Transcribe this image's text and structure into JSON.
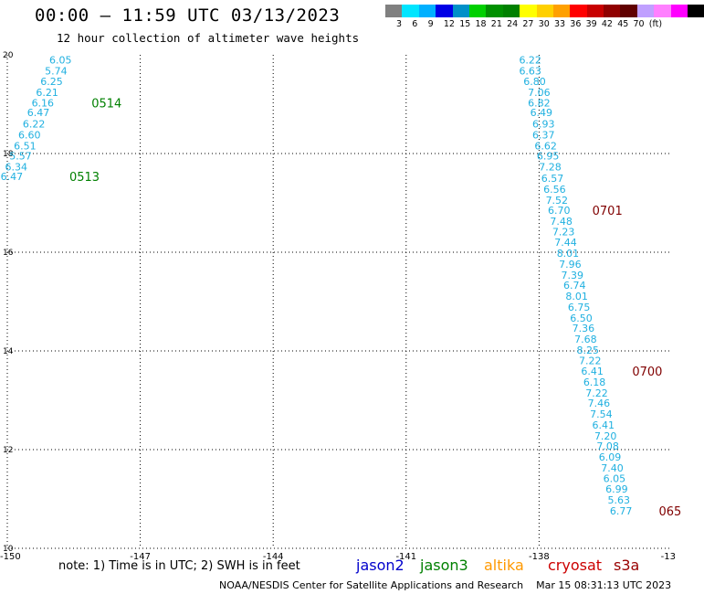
{
  "header": {
    "title": "00:00 – 11:59 UTC 03/13/2023",
    "subtitle": "12 hour collection of altimeter wave heights"
  },
  "legend": {
    "colors": [
      "#808080",
      "#00e5ff",
      "#00b0ff",
      "#0000e6",
      "#0090c8",
      "#00d000",
      "#009000",
      "#008000",
      "#ffff00",
      "#ffd000",
      "#ffa000",
      "#ff0000",
      "#c80000",
      "#900000",
      "#600000",
      "#c0a0ff",
      "#ff80ff",
      "#ff00ff",
      "#000000"
    ],
    "labels": [
      "3",
      "6",
      "9",
      "12",
      "15",
      "18",
      "21",
      "24",
      "27",
      "30",
      "33",
      "36",
      "39",
      "42",
      "45",
      "70",
      "(ft)"
    ]
  },
  "footer": {
    "note": "note: 1) Time is in UTC; 2) SWH is in feet",
    "satellites": [
      {
        "name": "jason2",
        "color": "#0000cc"
      },
      {
        "name": "jason3",
        "color": "#008000"
      },
      {
        "name": "altika",
        "color": "#ff9900"
      },
      {
        "name": "cryosat",
        "color": "#cc0000"
      },
      {
        "name": "s3a",
        "color": "#990000"
      }
    ],
    "credit": "NOAA/NESDIS Center for Satellite Applications and Research    Mar 15 08:31:13 UTC 2023"
  },
  "chart_data": {
    "type": "scatter",
    "xlim": [
      -150,
      -135
    ],
    "ylim": [
      10,
      20
    ],
    "xticks": [
      "-150",
      "-147",
      "-144",
      "-141",
      "-138",
      "-13"
    ],
    "yticks": [
      "10",
      "12",
      "14",
      "16",
      "18",
      "20"
    ],
    "grid": true,
    "point_color": "#20b0e0",
    "series": [
      {
        "points": [
          {
            "x": -148.8,
            "y": 19.9,
            "v": "6.05"
          },
          {
            "x": -148.9,
            "y": 19.68,
            "v": "5.74"
          },
          {
            "x": -149.0,
            "y": 19.46,
            "v": "6.25"
          },
          {
            "x": -149.1,
            "y": 19.24,
            "v": "6.21"
          },
          {
            "x": -149.2,
            "y": 19.03,
            "v": "6.16"
          },
          {
            "x": -149.3,
            "y": 18.83,
            "v": "6.47"
          },
          {
            "x": -149.4,
            "y": 18.6,
            "v": "6.22"
          },
          {
            "x": -149.5,
            "y": 18.38,
            "v": "6.60"
          },
          {
            "x": -149.6,
            "y": 18.16,
            "v": "6.51"
          },
          {
            "x": -149.7,
            "y": 17.95,
            "v": "5.57"
          },
          {
            "x": -149.8,
            "y": 17.73,
            "v": "6.34"
          },
          {
            "x": -149.9,
            "y": 17.54,
            "v": "6.47"
          }
        ]
      },
      {
        "points": [
          {
            "x": -138.2,
            "y": 19.9,
            "v": "6.22"
          },
          {
            "x": -138.2,
            "y": 19.68,
            "v": "6.63"
          },
          {
            "x": -138.1,
            "y": 19.46,
            "v": "6.80"
          },
          {
            "x": -138.0,
            "y": 19.24,
            "v": "7.06"
          },
          {
            "x": -138.0,
            "y": 19.03,
            "v": "6.82"
          },
          {
            "x": -137.95,
            "y": 18.83,
            "v": "6.49"
          },
          {
            "x": -137.9,
            "y": 18.6,
            "v": "6.93"
          },
          {
            "x": -137.9,
            "y": 18.38,
            "v": "6.37"
          },
          {
            "x": -137.85,
            "y": 18.16,
            "v": "6.62"
          },
          {
            "x": -137.8,
            "y": 17.95,
            "v": "6.95"
          },
          {
            "x": -137.75,
            "y": 17.73,
            "v": "7.28"
          },
          {
            "x": -137.7,
            "y": 17.5,
            "v": "6.57"
          },
          {
            "x": -137.65,
            "y": 17.28,
            "v": "6.56"
          },
          {
            "x": -137.6,
            "y": 17.06,
            "v": "7.52"
          },
          {
            "x": -137.55,
            "y": 16.85,
            "v": "6.70"
          },
          {
            "x": -137.5,
            "y": 16.63,
            "v": "7.48"
          },
          {
            "x": -137.45,
            "y": 16.42,
            "v": "7.23"
          },
          {
            "x": -137.4,
            "y": 16.2,
            "v": "7.44"
          },
          {
            "x": -137.35,
            "y": 15.98,
            "v": "8.01"
          },
          {
            "x": -137.3,
            "y": 15.76,
            "v": "7.96"
          },
          {
            "x": -137.25,
            "y": 15.54,
            "v": "7.39"
          },
          {
            "x": -137.2,
            "y": 15.33,
            "v": "6.74"
          },
          {
            "x": -137.15,
            "y": 15.11,
            "v": "8.01"
          },
          {
            "x": -137.1,
            "y": 14.89,
            "v": "6.75"
          },
          {
            "x": -137.05,
            "y": 14.67,
            "v": "6.50"
          },
          {
            "x": -137.0,
            "y": 14.46,
            "v": "7.36"
          },
          {
            "x": -136.95,
            "y": 14.24,
            "v": "7.68"
          },
          {
            "x": -136.9,
            "y": 14.02,
            "v": "8.25"
          },
          {
            "x": -136.85,
            "y": 13.81,
            "v": "7.22"
          },
          {
            "x": -136.8,
            "y": 13.59,
            "v": "6.41"
          },
          {
            "x": -136.75,
            "y": 13.37,
            "v": "6.18"
          },
          {
            "x": -136.7,
            "y": 13.15,
            "v": "7.22"
          },
          {
            "x": -136.65,
            "y": 12.94,
            "v": "7.46"
          },
          {
            "x": -136.6,
            "y": 12.72,
            "v": "7.54"
          },
          {
            "x": -136.55,
            "y": 12.5,
            "v": "6.41"
          },
          {
            "x": -136.5,
            "y": 12.28,
            "v": "7.20"
          },
          {
            "x": -136.45,
            "y": 12.07,
            "v": "7.08"
          },
          {
            "x": -136.4,
            "y": 11.85,
            "v": "6.09"
          },
          {
            "x": -136.35,
            "y": 11.63,
            "v": "7.40"
          },
          {
            "x": -136.3,
            "y": 11.42,
            "v": "6.05"
          },
          {
            "x": -136.25,
            "y": 11.2,
            "v": "6.99"
          },
          {
            "x": -136.2,
            "y": 10.98,
            "v": "5.63"
          },
          {
            "x": -136.15,
            "y": 10.76,
            "v": "6.77"
          }
        ]
      }
    ],
    "time_labels": [
      {
        "x": -148.1,
        "y": 19.03,
        "text": "0514",
        "color": "#008000"
      },
      {
        "x": -148.6,
        "y": 17.54,
        "text": "0513",
        "color": "#008000"
      },
      {
        "x": -136.8,
        "y": 16.85,
        "text": "0701",
        "color": "#800000"
      },
      {
        "x": -135.9,
        "y": 13.59,
        "text": "0700",
        "color": "#800000"
      },
      {
        "x": -135.3,
        "y": 10.76,
        "text": "065",
        "color": "#800000"
      }
    ]
  }
}
